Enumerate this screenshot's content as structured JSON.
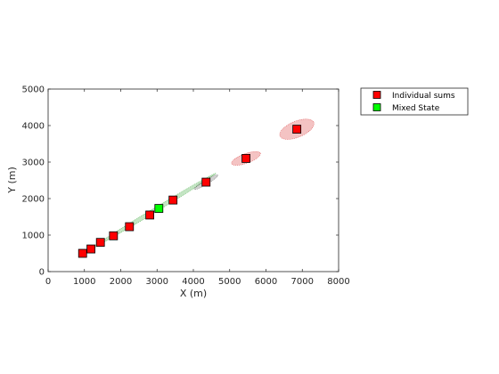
{
  "chart_data": {
    "type": "scatter",
    "xlabel": "X (m)",
    "ylabel": "Y (m)",
    "xlim": [
      0,
      8000
    ],
    "ylim": [
      0,
      5000
    ],
    "x_ticks": [
      0,
      1000,
      2000,
      3000,
      4000,
      5000,
      6000,
      7000,
      8000
    ],
    "y_ticks": [
      0,
      1000,
      2000,
      3000,
      4000,
      5000
    ],
    "grid": false,
    "legend_position": "outside-top-right",
    "series": [
      {
        "name": "Individual sums",
        "marker": "square",
        "color": "#ff0000",
        "x": [
          950,
          1180,
          1440,
          1800,
          2240,
          2800,
          3440,
          4350,
          5450,
          6850
        ],
        "y": [
          500,
          620,
          800,
          980,
          1230,
          1550,
          1960,
          2450,
          3100,
          3900
        ]
      },
      {
        "name": "Mixed State",
        "marker": "square",
        "color": "#00ff00",
        "x": [
          3050
        ],
        "y": [
          1730
        ]
      }
    ],
    "uncertainty_regions": [
      {
        "series": "Mixed State",
        "color": "#2ca02c",
        "cx": 2900,
        "cy": 1660,
        "rx": 2000,
        "ry": 55,
        "angle_deg": 31
      },
      {
        "series": "Individual sums",
        "color": "#555555",
        "cx": 4350,
        "cy": 2450,
        "rx": 380,
        "ry": 60,
        "angle_deg": 31
      },
      {
        "series": "Individual sums",
        "color": "#d62728",
        "cx": 5450,
        "cy": 3100,
        "rx": 420,
        "ry": 130,
        "angle_deg": 20
      },
      {
        "series": "Individual sums",
        "color": "#d62728",
        "cx": 6850,
        "cy": 3900,
        "rx": 500,
        "ry": 220,
        "angle_deg": 22
      }
    ]
  }
}
